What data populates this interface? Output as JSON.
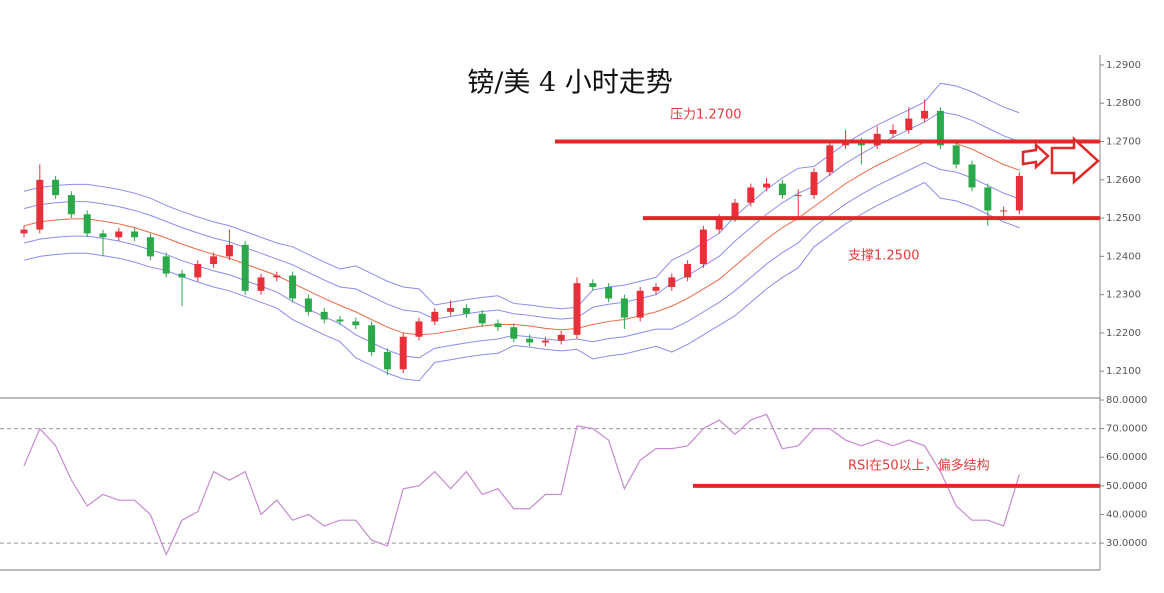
{
  "chart_data": [
    {
      "type": "candlestick",
      "title": "镑/美 4 小时走势",
      "open": [
        1.246,
        1.247,
        1.26,
        1.256,
        1.251,
        1.246,
        1.245,
        1.2465,
        1.245,
        1.24,
        1.2355,
        1.2345,
        1.238,
        1.24,
        1.243,
        1.231,
        1.2345,
        1.235,
        1.229,
        1.2255,
        1.2235,
        1.223,
        1.222,
        1.215,
        1.2105,
        1.219,
        1.223,
        1.2255,
        1.2265,
        1.225,
        1.2225,
        1.2215,
        1.2185,
        1.2175,
        1.218,
        1.2195,
        1.233,
        1.232,
        1.229,
        1.224,
        1.231,
        1.232,
        1.2345,
        1.238,
        1.247,
        1.25,
        1.254,
        1.258,
        1.259,
        1.256,
        1.256,
        1.262,
        1.269,
        1.27,
        1.269,
        1.272,
        1.273,
        1.276,
        1.278,
        1.269,
        1.264,
        1.258,
        1.252,
        1.252
      ],
      "high": [
        1.248,
        1.264,
        1.261,
        1.257,
        1.252,
        1.247,
        1.2475,
        1.2475,
        1.246,
        1.241,
        1.2365,
        1.239,
        1.241,
        1.247,
        1.244,
        1.2355,
        1.236,
        1.236,
        1.23,
        1.2265,
        1.2245,
        1.224,
        1.223,
        1.216,
        1.22,
        1.224,
        1.2265,
        1.2285,
        1.2275,
        1.226,
        1.2235,
        1.2225,
        1.2195,
        1.219,
        1.2205,
        1.2345,
        1.234,
        1.233,
        1.23,
        1.232,
        1.233,
        1.2355,
        1.239,
        1.248,
        1.251,
        1.255,
        1.259,
        1.2605,
        1.26,
        1.2575,
        1.263,
        1.27,
        1.273,
        1.271,
        1.274,
        1.2745,
        1.279,
        1.281,
        1.279,
        1.27,
        1.265,
        1.259,
        1.253,
        1.262
      ],
      "low": [
        1.245,
        1.246,
        1.255,
        1.25,
        1.245,
        1.24,
        1.244,
        1.244,
        1.239,
        1.2345,
        1.227,
        1.2335,
        1.237,
        1.239,
        1.23,
        1.23,
        1.2335,
        1.228,
        1.2245,
        1.2225,
        1.222,
        1.221,
        1.214,
        1.209,
        1.2095,
        1.218,
        1.222,
        1.2245,
        1.224,
        1.2215,
        1.2205,
        1.2175,
        1.2165,
        1.2165,
        1.217,
        1.2185,
        1.231,
        1.228,
        1.221,
        1.223,
        1.23,
        1.231,
        1.2335,
        1.237,
        1.246,
        1.249,
        1.253,
        1.257,
        1.255,
        1.25,
        1.255,
        1.261,
        1.268,
        1.264,
        1.268,
        1.271,
        1.272,
        1.275,
        1.268,
        1.263,
        1.257,
        1.248,
        1.25,
        1.251
      ],
      "close": [
        1.247,
        1.26,
        1.256,
        1.251,
        1.246,
        1.245,
        1.2465,
        1.245,
        1.24,
        1.2355,
        1.2345,
        1.238,
        1.24,
        1.243,
        1.231,
        1.2345,
        1.235,
        1.229,
        1.2255,
        1.2235,
        1.223,
        1.222,
        1.215,
        1.2105,
        1.219,
        1.223,
        1.2255,
        1.2265,
        1.225,
        1.2225,
        1.2215,
        1.2185,
        1.2175,
        1.218,
        1.2195,
        1.233,
        1.232,
        1.229,
        1.224,
        1.231,
        1.232,
        1.2345,
        1.238,
        1.247,
        1.25,
        1.254,
        1.258,
        1.259,
        1.256,
        1.256,
        1.262,
        1.269,
        1.27,
        1.269,
        1.272,
        1.273,
        1.276,
        1.278,
        1.269,
        1.264,
        1.258,
        1.252,
        1.252,
        1.261
      ],
      "up_color": "#e8303a",
      "down_color": "#2aa84a",
      "overlays": [
        {
          "color": "#8c8cf0",
          "values": [
            1.257,
            1.258,
            1.2585,
            1.2588,
            1.2588,
            1.2582,
            1.2575,
            1.2565,
            1.2552,
            1.2533,
            1.2517,
            1.2503,
            1.249,
            1.248,
            1.2465,
            1.245,
            1.2435,
            1.2425,
            1.2405,
            1.2385,
            1.2367,
            1.2375,
            1.2355,
            1.2335,
            1.232,
            1.2315,
            1.2273,
            1.228,
            1.2287,
            1.2293,
            1.2297,
            1.2277,
            1.2273,
            1.2267,
            1.2263,
            1.2267,
            1.2312,
            1.232,
            1.2325,
            1.2335,
            1.2345,
            1.239,
            1.241,
            1.2435,
            1.246,
            1.2505,
            1.254,
            1.2575,
            1.2605,
            1.263,
            1.2635,
            1.2665,
            1.2695,
            1.272,
            1.2743,
            1.2763,
            1.2783,
            1.2803,
            1.2852,
            1.2845,
            1.283,
            1.281,
            1.279,
            1.2775
          ]
        },
        {
          "color": "#8c8cf0",
          "values": [
            1.2525,
            1.2535,
            1.254,
            1.2543,
            1.2543,
            1.2537,
            1.253,
            1.252,
            1.2507,
            1.2491,
            1.2475,
            1.2461,
            1.2448,
            1.2438,
            1.2423,
            1.2408,
            1.2393,
            1.2378,
            1.2358,
            1.2338,
            1.232,
            1.2315,
            1.2295,
            1.2275,
            1.226,
            1.2255,
            1.2236,
            1.2243,
            1.225,
            1.2256,
            1.226,
            1.225,
            1.2246,
            1.224,
            1.2236,
            1.224,
            1.2267,
            1.2275,
            1.228,
            1.229,
            1.23,
            1.233,
            1.235,
            1.2375,
            1.24,
            1.244,
            1.2475,
            1.251,
            1.254,
            1.2565,
            1.2583,
            1.2613,
            1.2643,
            1.2668,
            1.2691,
            1.2711,
            1.2731,
            1.2751,
            1.2777,
            1.277,
            1.2755,
            1.2735,
            1.2715,
            1.27
          ]
        },
        {
          "color": "#ec6a48",
          "values": [
            1.248,
            1.249,
            1.2495,
            1.2498,
            1.2498,
            1.2492,
            1.2485,
            1.2475,
            1.2462,
            1.2448,
            1.2432,
            1.2418,
            1.2405,
            1.2395,
            1.238,
            1.2365,
            1.235,
            1.233,
            1.231,
            1.229,
            1.2272,
            1.2255,
            1.2235,
            1.2215,
            1.22,
            1.2195,
            1.2198,
            1.2205,
            1.2212,
            1.2218,
            1.2222,
            1.2222,
            1.2218,
            1.2212,
            1.2208,
            1.2212,
            1.2222,
            1.223,
            1.2235,
            1.2245,
            1.2255,
            1.227,
            1.229,
            1.2315,
            1.234,
            1.2375,
            1.241,
            1.2445,
            1.2475,
            1.25,
            1.253,
            1.256,
            1.259,
            1.2615,
            1.2638,
            1.2658,
            1.2678,
            1.2698,
            1.2702,
            1.2695,
            1.268,
            1.266,
            1.264,
            1.2625
          ]
        },
        {
          "color": "#8c8cf0",
          "values": [
            1.2435,
            1.2445,
            1.245,
            1.2453,
            1.2453,
            1.2447,
            1.244,
            1.243,
            1.2417,
            1.2405,
            1.2389,
            1.2375,
            1.2362,
            1.2352,
            1.2337,
            1.2322,
            1.2307,
            1.2282,
            1.2262,
            1.2242,
            1.2224,
            1.2195,
            1.2175,
            1.2155,
            1.214,
            1.2135,
            1.216,
            1.2167,
            1.2174,
            1.218,
            1.2184,
            1.2194,
            1.219,
            1.2184,
            1.218,
            1.2184,
            1.2177,
            1.2185,
            1.219,
            1.22,
            1.221,
            1.221,
            1.223,
            1.2255,
            1.228,
            1.231,
            1.2345,
            1.238,
            1.241,
            1.2435,
            1.2477,
            1.2507,
            1.2537,
            1.2562,
            1.2585,
            1.2605,
            1.2625,
            1.2645,
            1.2627,
            1.262,
            1.2605,
            1.2585,
            1.2565,
            1.255
          ]
        },
        {
          "color": "#8c8cf0",
          "values": [
            1.239,
            1.24,
            1.2405,
            1.2408,
            1.2408,
            1.2402,
            1.2395,
            1.2385,
            1.2372,
            1.2363,
            1.2347,
            1.2333,
            1.232,
            1.231,
            1.2295,
            1.228,
            1.2265,
            1.2235,
            1.2215,
            1.2195,
            1.2177,
            1.2135,
            1.2115,
            1.2095,
            1.208,
            1.2075,
            1.2123,
            1.213,
            1.2137,
            1.2143,
            1.2147,
            1.2167,
            1.2163,
            1.2157,
            1.2153,
            1.2157,
            1.2132,
            1.214,
            1.2145,
            1.2155,
            1.2165,
            1.215,
            1.217,
            1.2195,
            1.222,
            1.2245,
            1.228,
            1.2315,
            1.2345,
            1.237,
            1.2425,
            1.2455,
            1.2485,
            1.251,
            1.2533,
            1.2553,
            1.2573,
            1.2593,
            1.2552,
            1.2545,
            1.253,
            1.251,
            1.249,
            1.2475
          ]
        }
      ],
      "ylim": [
        1.203,
        1.2926
      ],
      "yticks": [
        {
          "value": 1.29,
          "label": "1.2900"
        },
        {
          "value": 1.28,
          "label": "1.2800"
        },
        {
          "value": 1.27,
          "label": "1.2700"
        },
        {
          "value": 1.26,
          "label": "1.2600"
        },
        {
          "value": 1.25,
          "label": "1.2500"
        },
        {
          "value": 1.24,
          "label": "1.2400"
        },
        {
          "value": 1.23,
          "label": "1.2300"
        },
        {
          "value": 1.22,
          "label": "1.2200"
        },
        {
          "value": 1.21,
          "label": "1.2100"
        }
      ],
      "levels": [
        {
          "value": 1.27,
          "label": "压力1.2700",
          "color": "#e02828"
        },
        {
          "value": 1.25,
          "label": "支撑1.2500",
          "color": "#e02828"
        }
      ]
    },
    {
      "type": "line",
      "values": [
        57,
        70,
        64,
        52,
        43,
        47,
        45,
        45,
        40,
        26,
        38,
        41,
        55,
        52,
        55,
        40,
        45,
        38,
        40,
        36,
        38,
        38,
        31,
        29,
        49,
        50,
        55,
        49,
        55,
        47,
        49,
        42,
        42,
        47,
        47,
        71,
        70,
        66,
        49,
        59,
        63,
        63,
        64,
        70,
        73,
        68,
        73,
        75,
        63,
        64,
        70,
        70,
        66,
        64,
        66,
        64,
        66,
        64,
        55,
        43,
        38,
        38,
        36,
        54
      ],
      "color": "#c58ad0",
      "ylim": [
        20.6,
        80.7
      ],
      "yticks": [
        {
          "value": 80,
          "label": "80.0000"
        },
        {
          "value": 70,
          "label": "70.0000"
        },
        {
          "value": 60,
          "label": "60.0000"
        },
        {
          "value": 50,
          "label": "50.0000"
        },
        {
          "value": 40,
          "label": "40.0000"
        },
        {
          "value": 30,
          "label": "30.0000"
        }
      ],
      "dashed_levels": [
        70,
        30
      ],
      "levels": [
        {
          "value": 50,
          "label": "RSI在50以上，偏多结构",
          "color": "#e02828"
        }
      ]
    }
  ]
}
